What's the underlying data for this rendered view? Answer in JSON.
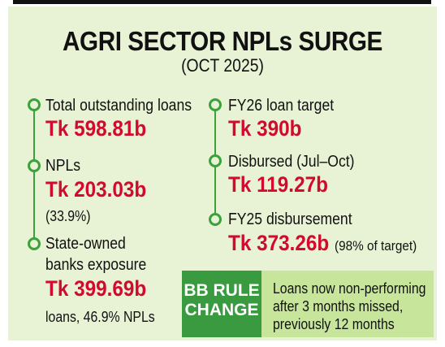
{
  "header": {
    "title": "AGRI SECTOR NPLs SURGE",
    "subtitle": "(OCT 2025)"
  },
  "left": [
    {
      "label": "Total outstanding loans",
      "value": "Tk 598.81b"
    },
    {
      "label": "NPLs",
      "value": "Tk 203.03b",
      "note": "(33.9%)"
    },
    {
      "label": "State-owned",
      "label2": "banks exposure",
      "value": "Tk 399.69b",
      "note": "loans, 46.9% NPLs"
    }
  ],
  "right": [
    {
      "label": "FY26 loan target",
      "value": "Tk 390b"
    },
    {
      "label": "Disbursed (Jul–Oct)",
      "value": "Tk 119.27b"
    },
    {
      "label": "FY25 disbursement",
      "value": "Tk 373.26b",
      "note": "(98% of target)"
    }
  ],
  "rule": {
    "title_line1": "BB RULE",
    "title_line2": "CHANGE",
    "desc_line1": "Loans now non-performing",
    "desc_line2": "after 3 months missed,",
    "desc_line3": "previously 12 months"
  },
  "colors": {
    "background": "#e8f2d4",
    "accent_green": "#3aa23a",
    "value_red": "#d10a2e",
    "rule_box": "#3a9a3f",
    "rule_desc_bg": "#c8e59c"
  }
}
